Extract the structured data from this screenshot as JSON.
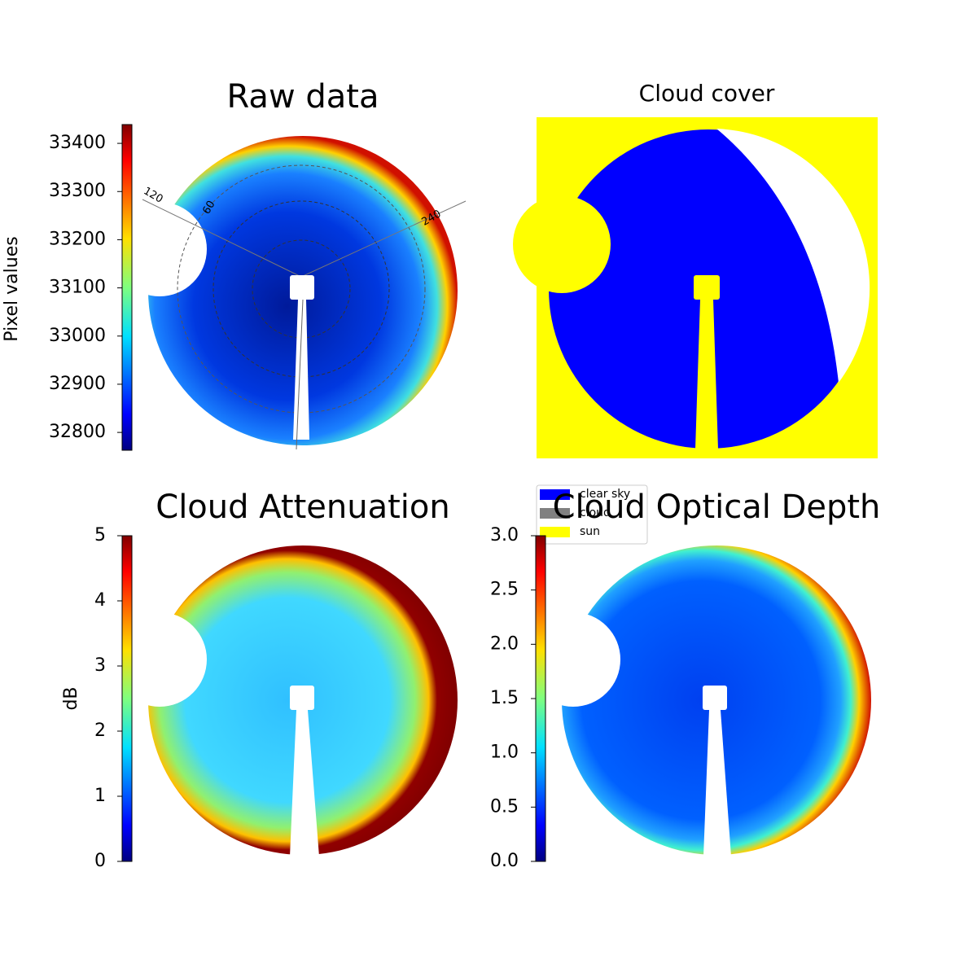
{
  "chart_data": [
    {
      "type": "image",
      "title": "Raw data",
      "colormap": "jet",
      "colorbar_label": "Pixel values",
      "ylim": [
        32763,
        33439
      ],
      "yticks": [
        32800,
        32900,
        33000,
        33100,
        33200,
        33300,
        33400
      ],
      "annotations": [
        "120",
        "60",
        "240"
      ]
    },
    {
      "type": "image",
      "title": "Cloud cover",
      "series": [
        {
          "name": "clear sky",
          "color": "#0000ff"
        },
        {
          "name": "cloud",
          "color": "#808080"
        },
        {
          "name": "sun",
          "color": "#ffff00"
        }
      ]
    },
    {
      "type": "image",
      "title": "Cloud Attenuation",
      "colormap": "jet",
      "colorbar_label": "dB",
      "ylim": [
        0,
        5
      ],
      "yticks": [
        0,
        1,
        2,
        3,
        4,
        5
      ]
    },
    {
      "type": "image",
      "title": "Cloud Optical Depth",
      "colormap": "jet",
      "ylim": [
        0,
        3
      ],
      "yticks": [
        {
          "value": 0,
          "label": "0.0"
        },
        0.5,
        {
          "value": 1,
          "label": "1.0"
        },
        1.5,
        {
          "value": 2,
          "label": "2.0"
        },
        2.5,
        {
          "value": 3,
          "label": "3.0"
        }
      ]
    }
  ]
}
